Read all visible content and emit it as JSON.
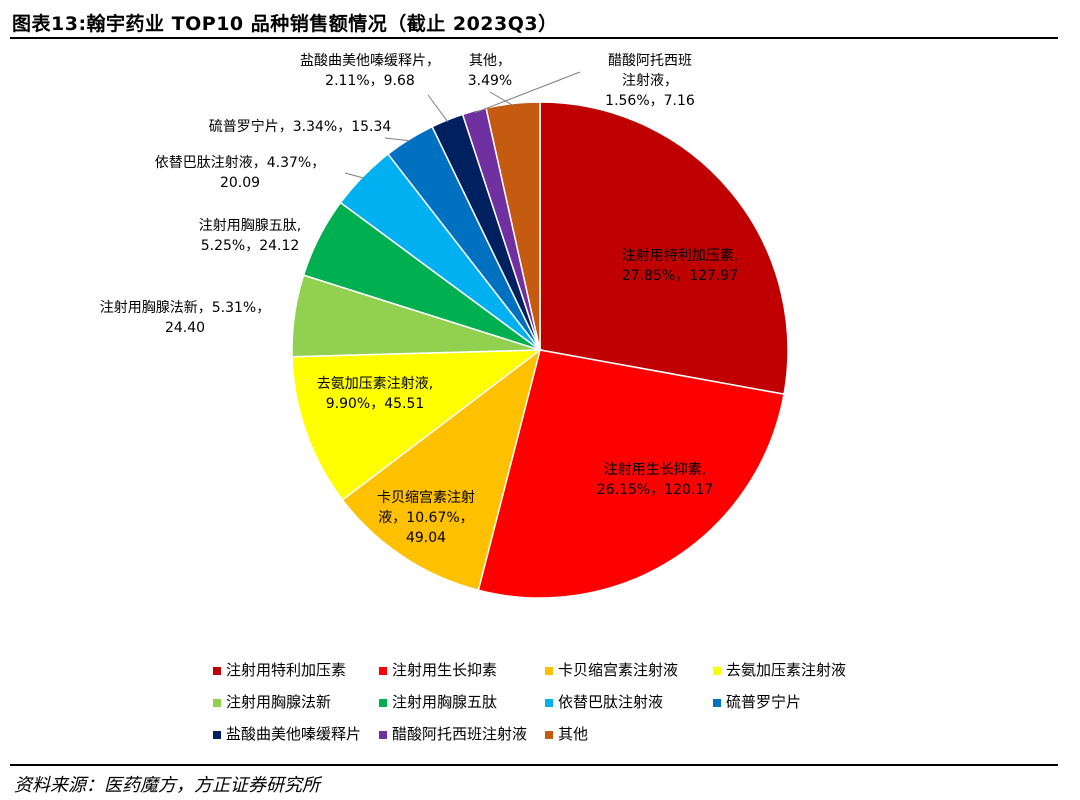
{
  "title": "图表13:翰宇药业 TOP10 品种销售额情况（截止 2023Q3）",
  "source": "资料来源：医药魔方，方正证券研究所",
  "chart_data": {
    "type": "pie",
    "title": "图表13:翰宇药业 TOP10 品种销售额情况（截止 2023Q3）",
    "start_angle_deg": 0,
    "direction": "clockwise",
    "legend_position": "bottom",
    "slices": [
      {
        "name": "注射用特利加压素",
        "percent": 27.85,
        "value": 127.97,
        "color": "#C00000",
        "label_lines": [
          "注射用特利加压素,",
          "27.85%，127.97"
        ]
      },
      {
        "name": "注射用生长抑素",
        "percent": 26.15,
        "value": 120.17,
        "color": "#FF0000",
        "label_lines": [
          "注射用生长抑素,",
          "26.15%，120.17"
        ]
      },
      {
        "name": "卡贝缩宫素注射液",
        "percent": 10.67,
        "value": 49.04,
        "color": "#FFC000",
        "label_lines": [
          "卡贝缩宫素注射",
          "液，10.67%，",
          "49.04"
        ]
      },
      {
        "name": "去氨加压素注射液",
        "percent": 9.9,
        "value": 45.51,
        "color": "#FFFF00",
        "label_lines": [
          "去氨加压素注射液,",
          "9.90%，45.51"
        ]
      },
      {
        "name": "注射用胸腺法新",
        "percent": 5.31,
        "value": 24.4,
        "color": "#92D050",
        "label_lines": [
          "注射用胸腺法新，5.31%，",
          "24.40"
        ]
      },
      {
        "name": "注射用胸腺五肽",
        "percent": 5.25,
        "value": 24.12,
        "color": "#00B050",
        "label_lines": [
          "注射用胸腺五肽,",
          "5.25%，24.12"
        ]
      },
      {
        "name": "依替巴肽注射液",
        "percent": 4.37,
        "value": 20.09,
        "color": "#00B0F0",
        "label_lines": [
          "依替巴肽注射液，4.37%，",
          "20.09"
        ]
      },
      {
        "name": "硫普罗宁片",
        "percent": 3.34,
        "value": 15.34,
        "color": "#0070C0",
        "label_lines": [
          "硫普罗宁片，3.34%，15.34"
        ]
      },
      {
        "name": "盐酸曲美他嗪缓释片",
        "percent": 2.11,
        "value": 9.68,
        "color": "#002060",
        "label_lines": [
          "盐酸曲美他嗪缓释片，",
          "2.11%，9.68"
        ]
      },
      {
        "name": "醋酸阿托西班注射液",
        "percent": 1.56,
        "value": 7.16,
        "color": "#7030A0",
        "label_lines": [
          "醋酸阿托西班",
          "注射液，",
          "1.56%，7.16"
        ]
      },
      {
        "name": "其他",
        "percent": 3.49,
        "value": null,
        "color": "#C55A11",
        "label_lines": [
          "其他，",
          "3.49%"
        ]
      }
    ],
    "legend": [
      [
        "注射用特利加压素",
        "注射用生长抑素",
        "卡贝缩宫素注射液",
        "去氨加压素注射液"
      ],
      [
        "注射用胸腺法新",
        "注射用胸腺五肽",
        "依替巴肽注射液",
        "硫普罗宁片"
      ],
      [
        "盐酸曲美他嗪缓释片",
        "醋酸阿托西班注射液",
        "其他"
      ]
    ]
  }
}
